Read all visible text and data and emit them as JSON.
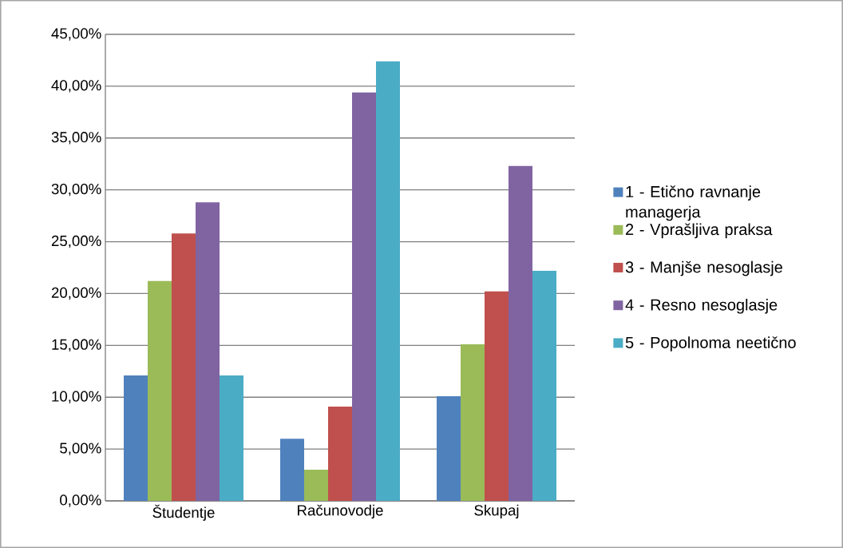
{
  "chart_data": {
    "type": "bar",
    "categories": [
      "Študentje",
      "Računovodje",
      "Skupaj"
    ],
    "series": [
      {
        "name": "1 - Etično ravnanje managerja",
        "color": "#4f81bd",
        "values": [
          12.1,
          6.0,
          10.1
        ]
      },
      {
        "name": "2 - Vprašljiva praksa",
        "color": "#9bbb59",
        "values": [
          21.2,
          3.0,
          15.1
        ]
      },
      {
        "name": "3 - Manjše nesoglasje",
        "color": "#c0504d",
        "values": [
          25.8,
          9.1,
          20.2
        ]
      },
      {
        "name": "4 - Resno nesoglasje",
        "color": "#8064a2",
        "values": [
          28.8,
          39.4,
          32.3
        ]
      },
      {
        "name": "5 - Popolnoma neetično",
        "color": "#4bacc6",
        "values": [
          12.1,
          42.4,
          22.2
        ]
      }
    ],
    "ylim": [
      0,
      45
    ],
    "yticks": [
      {
        "value": 0,
        "label": "0,00%"
      },
      {
        "value": 5,
        "label": "5,00%"
      },
      {
        "value": 10,
        "label": "10,00%"
      },
      {
        "value": 15,
        "label": "15,00%"
      },
      {
        "value": 20,
        "label": "20,00%"
      },
      {
        "value": 25,
        "label": "25,00%"
      },
      {
        "value": 30,
        "label": "30,00%"
      },
      {
        "value": 35,
        "label": "35,00%"
      },
      {
        "value": 40,
        "label": "40,00%"
      },
      {
        "value": 45,
        "label": "45,00%"
      }
    ],
    "grid": "y",
    "legend": "right"
  }
}
